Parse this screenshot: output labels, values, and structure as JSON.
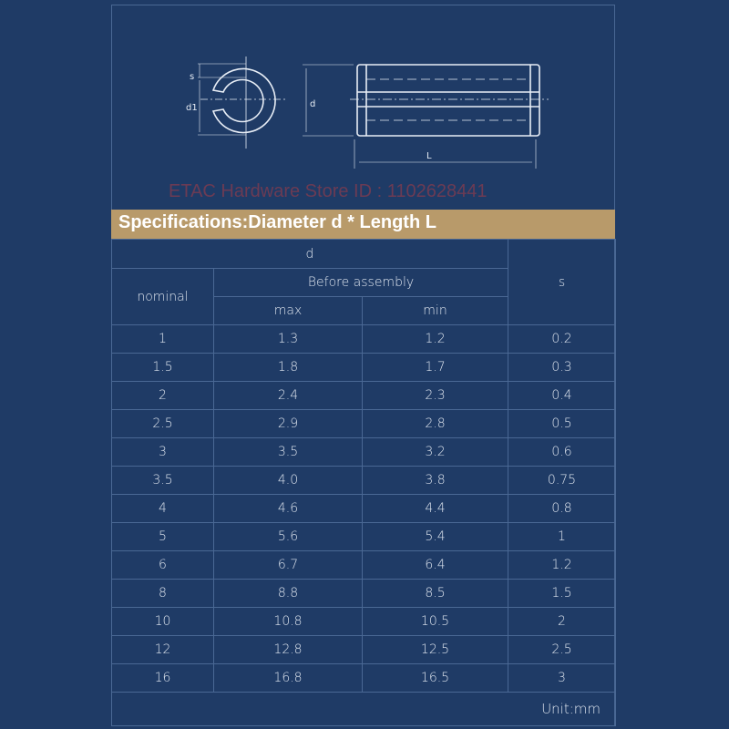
{
  "drawing": {
    "labels": {
      "s": "s",
      "d1": "d1",
      "d": "d",
      "L": "L"
    }
  },
  "banner": "Specifications:Diameter d * Length L",
  "table": {
    "header_d": "d",
    "header_nominal": "nominal",
    "header_before": "Before assembly",
    "header_max": "max",
    "header_min": "min",
    "header_s": "s",
    "rows": [
      [
        "1",
        "1.3",
        "1.2",
        "0.2"
      ],
      [
        "1.5",
        "1.8",
        "1.7",
        "0.3"
      ],
      [
        "2",
        "2.4",
        "2.3",
        "0.4"
      ],
      [
        "2.5",
        "2.9",
        "2.8",
        "0.5"
      ],
      [
        "3",
        "3.5",
        "3.2",
        "0.6"
      ],
      [
        "3.5",
        "4.0",
        "3.8",
        "0.75"
      ],
      [
        "4",
        "4.6",
        "4.4",
        "0.8"
      ],
      [
        "5",
        "5.6",
        "5.4",
        "1"
      ],
      [
        "6",
        "6.7",
        "6.4",
        "1.2"
      ],
      [
        "8",
        "8.8",
        "8.5",
        "1.5"
      ],
      [
        "10",
        "10.8",
        "10.5",
        "2"
      ],
      [
        "12",
        "12.8",
        "12.5",
        "2.5"
      ],
      [
        "16",
        "16.8",
        "16.5",
        "3"
      ]
    ],
    "unit": "Unit:mm"
  },
  "watermark": "ETAC Hardware Store ID : 1102628441",
  "colors": {
    "background": "#1f3b66",
    "banner": "#b89a6a",
    "watermark": "#aa3c46"
  }
}
